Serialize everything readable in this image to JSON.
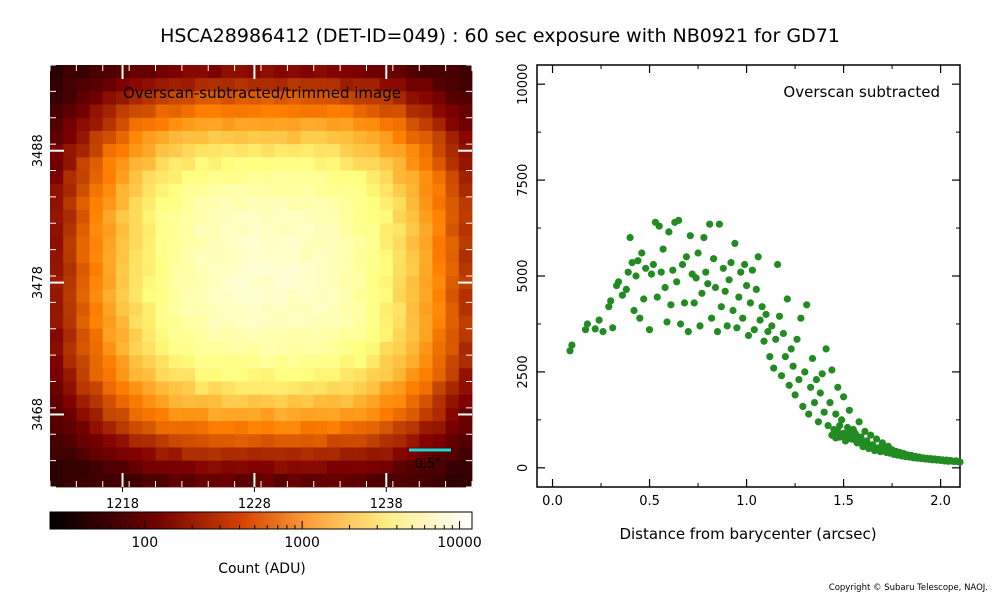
{
  "title": "HSCA28986412 (DET-ID=049) :  60 sec exposure with NB0921 for GD71",
  "copyright": "Copyright © Subaru Telescope, NAOJ.",
  "colors": {
    "annotation": "#19d9d9",
    "scatter": "#228b22",
    "frame": "#000000"
  },
  "chart_data": [
    {
      "type": "heatmap",
      "label": "Overscan-subtracted/trimmed image",
      "scale_bar": "0.5\"",
      "x_ticks": [
        "1218",
        "1228",
        "1238"
      ],
      "y_ticks": [
        "3488",
        "3478",
        "3468"
      ],
      "x_range": [
        1212.5,
        1244.5
      ],
      "y_range": [
        3462.5,
        3494.5
      ],
      "colormap": "afmhot",
      "stretch": "log",
      "grid_cols": 32,
      "grid_rows": 32,
      "peak_value": 6500,
      "background_value": 40,
      "source_center": [
        1229,
        3479
      ]
    },
    {
      "type": "colorbar",
      "label": "Count (ADU)",
      "scale": "log",
      "range": [
        25,
        12000
      ],
      "ticks": [
        {
          "value": 100,
          "label": "100"
        },
        {
          "value": 1000,
          "label": "1000"
        },
        {
          "value": 10000,
          "label": "10000"
        }
      ]
    },
    {
      "type": "scatter",
      "label": "Overscan subtracted",
      "xlabel": "Distance from barycenter (arcsec)",
      "ylabel": "",
      "xlim": [
        -0.08,
        2.1
      ],
      "ylim": [
        -500,
        10500
      ],
      "x_ticks": [
        {
          "value": 0.0,
          "label": "0.0"
        },
        {
          "value": 0.5,
          "label": "0.5"
        },
        {
          "value": 1.0,
          "label": "1.0"
        },
        {
          "value": 1.5,
          "label": "1.5"
        },
        {
          "value": 2.0,
          "label": "2.0"
        }
      ],
      "y_ticks": [
        {
          "value": 0,
          "label": "0"
        },
        {
          "value": 2500,
          "label": "2500"
        },
        {
          "value": 5000,
          "label": "5000"
        },
        {
          "value": 7500,
          "label": "7500"
        },
        {
          "value": 10000,
          "label": "10000"
        }
      ],
      "points": [
        [
          0.09,
          3050
        ],
        [
          0.1,
          3200
        ],
        [
          0.17,
          3600
        ],
        [
          0.18,
          3750
        ],
        [
          0.22,
          3620
        ],
        [
          0.24,
          3850
        ],
        [
          0.26,
          3550
        ],
        [
          0.29,
          4200
        ],
        [
          0.3,
          4350
        ],
        [
          0.31,
          3650
        ],
        [
          0.33,
          4750
        ],
        [
          0.34,
          4850
        ],
        [
          0.36,
          4500
        ],
        [
          0.38,
          4650
        ],
        [
          0.39,
          5100
        ],
        [
          0.4,
          6000
        ],
        [
          0.41,
          5350
        ],
        [
          0.42,
          4100
        ],
        [
          0.43,
          5000
        ],
        [
          0.44,
          5400
        ],
        [
          0.45,
          3900
        ],
        [
          0.46,
          5600
        ],
        [
          0.47,
          4400
        ],
        [
          0.48,
          5200
        ],
        [
          0.5,
          3600
        ],
        [
          0.51,
          5050
        ],
        [
          0.52,
          5300
        ],
        [
          0.53,
          6400
        ],
        [
          0.54,
          4450
        ],
        [
          0.55,
          6300
        ],
        [
          0.56,
          5100
        ],
        [
          0.57,
          5700
        ],
        [
          0.58,
          4700
        ],
        [
          0.59,
          3800
        ],
        [
          0.6,
          6150
        ],
        [
          0.61,
          4250
        ],
        [
          0.62,
          5150
        ],
        [
          0.63,
          6400
        ],
        [
          0.64,
          4850
        ],
        [
          0.65,
          6450
        ],
        [
          0.66,
          3750
        ],
        [
          0.67,
          5300
        ],
        [
          0.68,
          4300
        ],
        [
          0.69,
          5500
        ],
        [
          0.7,
          3550
        ],
        [
          0.71,
          6050
        ],
        [
          0.72,
          5050
        ],
        [
          0.73,
          4300
        ],
        [
          0.74,
          4950
        ],
        [
          0.75,
          5600
        ],
        [
          0.76,
          3700
        ],
        [
          0.77,
          4550
        ],
        [
          0.78,
          6000
        ],
        [
          0.79,
          5100
        ],
        [
          0.8,
          4800
        ],
        [
          0.81,
          6350
        ],
        [
          0.82,
          3900
        ],
        [
          0.83,
          5450
        ],
        [
          0.84,
          4700
        ],
        [
          0.85,
          3550
        ],
        [
          0.86,
          6350
        ],
        [
          0.87,
          4200
        ],
        [
          0.88,
          5200
        ],
        [
          0.89,
          4600
        ],
        [
          0.9,
          3700
        ],
        [
          0.91,
          4900
        ],
        [
          0.92,
          5350
        ],
        [
          0.93,
          4100
        ],
        [
          0.94,
          5850
        ],
        [
          0.95,
          3650
        ],
        [
          0.96,
          4450
        ],
        [
          0.97,
          5100
        ],
        [
          0.98,
          3900
        ],
        [
          0.99,
          5300
        ],
        [
          1.0,
          4750
        ],
        [
          1.01,
          3450
        ],
        [
          1.02,
          4300
        ],
        [
          1.03,
          5150
        ],
        [
          1.04,
          3600
        ],
        [
          1.05,
          4650
        ],
        [
          1.06,
          5500
        ],
        [
          1.07,
          3850
        ],
        [
          1.08,
          4200
        ],
        [
          1.09,
          3300
        ],
        [
          1.1,
          4000
        ],
        [
          1.11,
          3550
        ],
        [
          1.12,
          2900
        ],
        [
          1.13,
          3700
        ],
        [
          1.14,
          2600
        ],
        [
          1.15,
          3350
        ],
        [
          1.16,
          5300
        ],
        [
          1.17,
          3950
        ],
        [
          1.18,
          2400
        ],
        [
          1.19,
          3500
        ],
        [
          1.2,
          2900
        ],
        [
          1.21,
          4400
        ],
        [
          1.22,
          2150
        ],
        [
          1.23,
          3100
        ],
        [
          1.24,
          2650
        ],
        [
          1.25,
          1900
        ],
        [
          1.26,
          3350
        ],
        [
          1.27,
          2300
        ],
        [
          1.28,
          3900
        ],
        [
          1.29,
          1600
        ],
        [
          1.3,
          2500
        ],
        [
          1.31,
          4250
        ],
        [
          1.32,
          1400
        ],
        [
          1.33,
          2100
        ],
        [
          1.34,
          2850
        ],
        [
          1.35,
          1700
        ],
        [
          1.36,
          2300
        ],
        [
          1.37,
          1200
        ],
        [
          1.38,
          1950
        ],
        [
          1.39,
          2450
        ],
        [
          1.4,
          1450
        ],
        [
          1.41,
          3100
        ],
        [
          1.42,
          1100
        ],
        [
          1.43,
          1700
        ],
        [
          1.44,
          2550
        ],
        [
          1.45,
          900
        ],
        [
          1.46,
          1400
        ],
        [
          1.47,
          2100
        ],
        [
          1.48,
          800
        ],
        [
          1.49,
          1250
        ],
        [
          1.5,
          1850
        ],
        [
          1.51,
          700
        ],
        [
          1.52,
          1050
        ],
        [
          1.53,
          1500
        ],
        [
          1.54,
          750
        ],
        [
          1.55,
          1000
        ],
        [
          1.56,
          900
        ],
        [
          1.57,
          650
        ],
        [
          1.58,
          1200
        ],
        [
          1.59,
          800
        ],
        [
          1.6,
          550
        ],
        [
          1.61,
          950
        ],
        [
          1.62,
          700
        ],
        [
          1.63,
          500
        ],
        [
          1.64,
          850
        ],
        [
          1.65,
          600
        ],
        [
          1.66,
          450
        ],
        [
          1.67,
          750
        ],
        [
          1.68,
          520
        ],
        [
          1.69,
          420
        ],
        [
          1.7,
          650
        ],
        [
          1.71,
          480
        ],
        [
          1.72,
          400
        ],
        [
          1.73,
          560
        ],
        [
          1.74,
          380
        ],
        [
          1.75,
          470
        ],
        [
          1.76,
          350
        ],
        [
          1.77,
          430
        ],
        [
          1.78,
          330
        ],
        [
          1.79,
          400
        ],
        [
          1.8,
          310
        ],
        [
          1.81,
          370
        ],
        [
          1.82,
          290
        ],
        [
          1.83,
          340
        ],
        [
          1.84,
          280
        ],
        [
          1.85,
          320
        ],
        [
          1.86,
          260
        ],
        [
          1.87,
          300
        ],
        [
          1.88,
          250
        ],
        [
          1.89,
          280
        ],
        [
          1.9,
          240
        ],
        [
          1.91,
          260
        ],
        [
          1.92,
          230
        ],
        [
          1.93,
          250
        ],
        [
          1.94,
          220
        ],
        [
          1.95,
          240
        ],
        [
          1.96,
          210
        ],
        [
          1.97,
          230
        ],
        [
          1.98,
          200
        ],
        [
          1.99,
          220
        ],
        [
          2.0,
          190
        ],
        [
          2.01,
          210
        ],
        [
          2.02,
          180
        ],
        [
          2.03,
          200
        ],
        [
          2.04,
          170
        ],
        [
          2.05,
          190
        ],
        [
          2.06,
          175
        ],
        [
          2.07,
          165
        ],
        [
          2.08,
          180
        ],
        [
          2.09,
          160
        ],
        [
          2.1,
          150
        ],
        [
          1.45,
          1000
        ],
        [
          1.47,
          950
        ],
        [
          1.5,
          900
        ],
        [
          1.52,
          850
        ],
        [
          1.55,
          780
        ],
        [
          1.58,
          700
        ],
        [
          1.6,
          650
        ],
        [
          1.48,
          1100
        ],
        [
          1.53,
          900
        ],
        [
          1.57,
          820
        ],
        [
          1.62,
          600
        ],
        [
          1.44,
          850
        ],
        [
          1.46,
          780
        ],
        [
          1.49,
          820
        ],
        [
          1.56,
          720
        ],
        [
          1.61,
          680
        ],
        [
          1.63,
          590
        ],
        [
          1.66,
          520
        ],
        [
          1.68,
          480
        ],
        [
          1.7,
          450
        ]
      ]
    }
  ]
}
